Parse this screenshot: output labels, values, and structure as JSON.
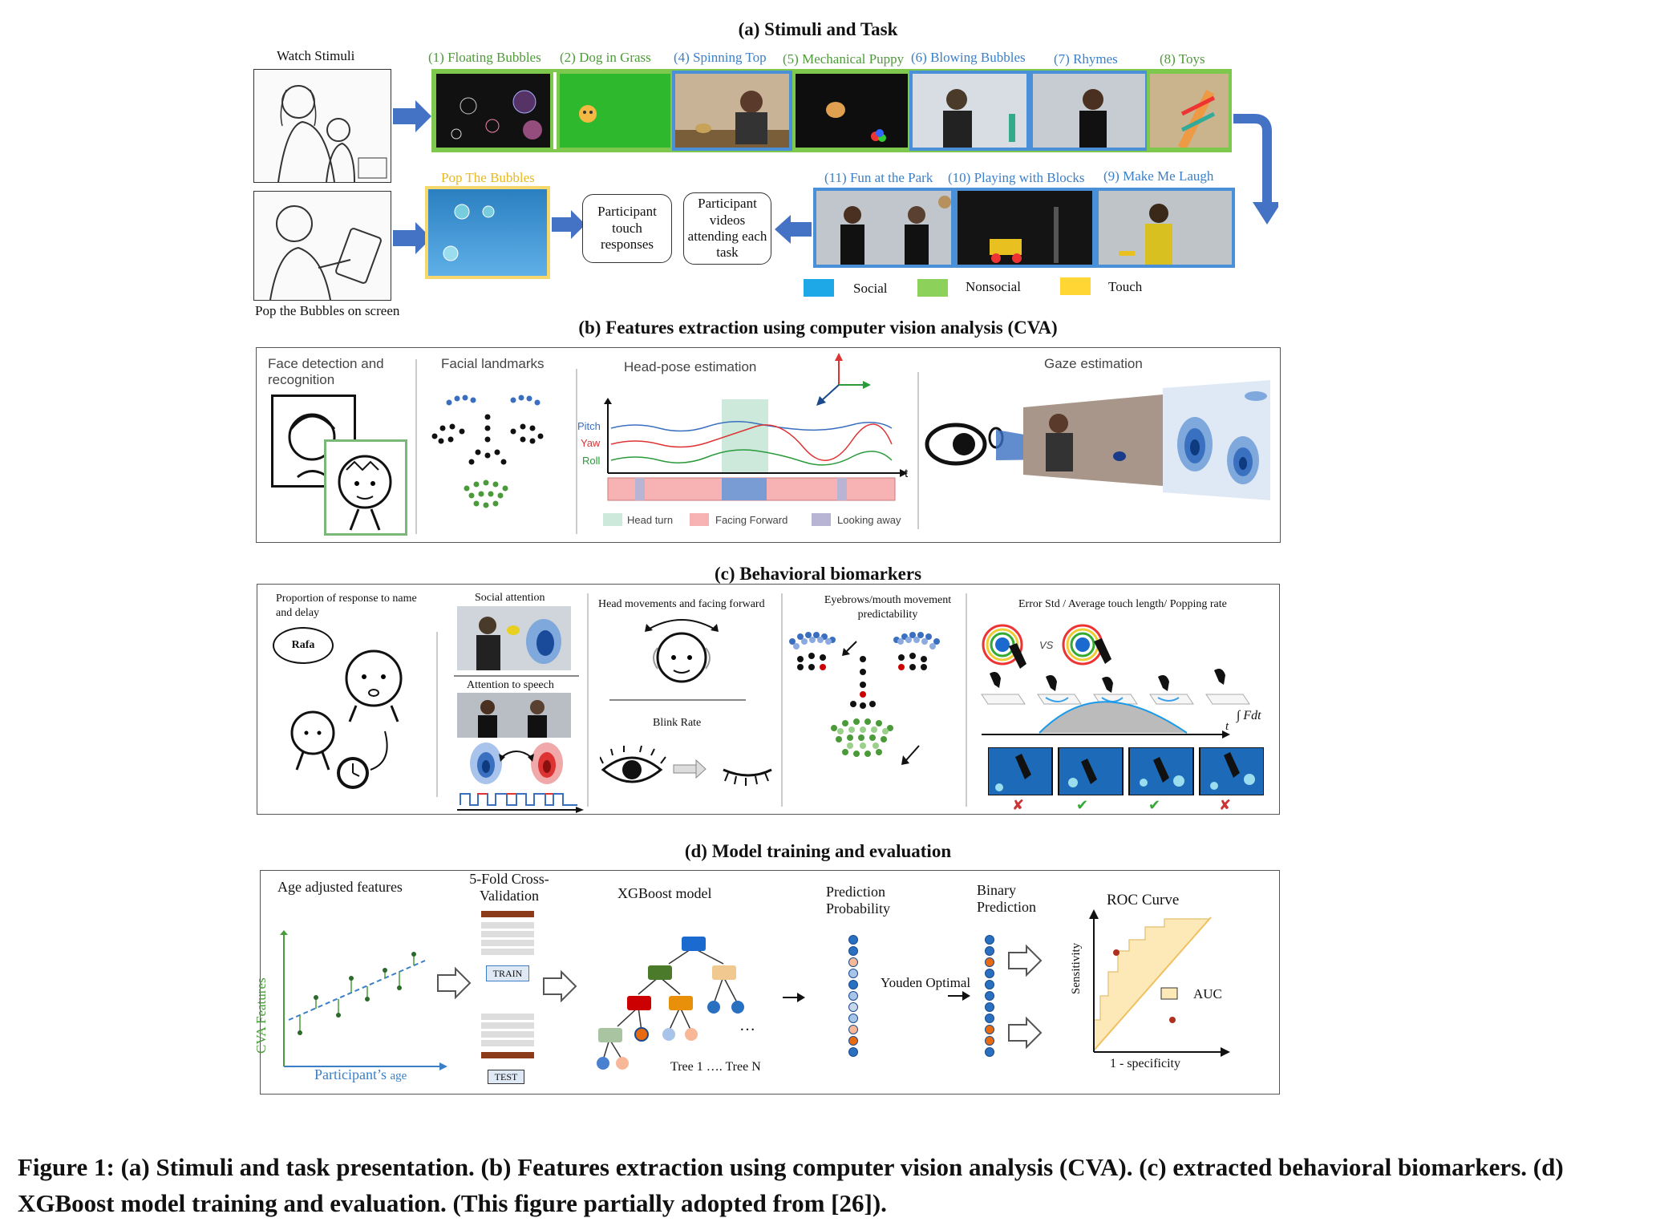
{
  "panel_a": {
    "title": "(a) Stimuli and Task",
    "watch_label": "Watch Stimuli",
    "pop_label": "Pop the Bubbles on screen",
    "stimuli_row1": [
      {
        "label": "(1) Floating Bubbles",
        "color": "#4f9a3a"
      },
      {
        "label": "(2) Dog in Grass",
        "color": "#4f9a3a"
      },
      {
        "label": "(4) Spinning Top",
        "color": "#3a7fc8"
      },
      {
        "label": "(5) Mechanical Puppy",
        "color": "#4f9a3a"
      },
      {
        "label": "(6) Blowing Bubbles",
        "color": "#3a7fc8"
      },
      {
        "label": "(7) Rhymes",
        "color": "#3a7fc8"
      },
      {
        "label": "(8) Toys",
        "color": "#4f9a3a"
      }
    ],
    "stimuli_row2": [
      {
        "label": "(11) Fun at the Park"
      },
      {
        "label": "(10) Playing with Blocks"
      },
      {
        "label": "(9) Make Me Laugh"
      }
    ],
    "pop_bubbles_label": "Pop The Bubbles",
    "touch_box": "Participant touch responses",
    "video_box": "Participant videos attending each task",
    "legend": [
      {
        "label": "Social",
        "color": "#1ea8e8"
      },
      {
        "label": "Nonsocial",
        "color": "#8cd15a"
      },
      {
        "label": "Touch",
        "color": "#ffd633"
      }
    ]
  },
  "panel_b": {
    "title": "(b) Features extraction using computer vision analysis (CVA)",
    "face_detection": "Face detection and recognition",
    "facial_landmarks": "Facial landmarks",
    "head_pose": "Head-pose estimation",
    "gaze": "Gaze estimation",
    "series": [
      "Pitch",
      "Yaw",
      "Roll"
    ],
    "axis_t": "t",
    "legend": [
      {
        "label": "Head turn",
        "color": "#cde9dc"
      },
      {
        "label": "Facing Forward",
        "color": "#f7b3b3"
      },
      {
        "label": "Looking away",
        "color": "#b8b4d4"
      }
    ]
  },
  "panel_c": {
    "title": "(c) Behavioral biomarkers",
    "name_response": "Proportion of response to name and delay",
    "speech_bubble": "Rafa",
    "social_attention": "Social attention",
    "attention_speech": "Attention to speech",
    "head_movements": "Head movements and facing forward",
    "blink_rate": "Blink Rate",
    "eyebrows": "Eyebrows/mouth movement predictability",
    "touch_metrics": "Error Std / Average touch length/ Popping rate",
    "vs": "VS",
    "integral": "∫ Fdt",
    "axis_t": "t",
    "marks": [
      "✘",
      "✔",
      "✔",
      "✘"
    ]
  },
  "panel_d": {
    "title": "(d) Model training and evaluation",
    "age_adjusted": "Age adjusted features",
    "y_axis": "CVA Features",
    "x_axis_a": "Participant’s ",
    "x_axis_b": "age",
    "cv": "5-Fold Cross-Validation",
    "train": "TRAIN",
    "test": "TEST",
    "xgb": "XGBoost model",
    "trees": "Tree 1 …. Tree N",
    "dots": "…",
    "pred_prob": "Prediction Probability",
    "youden": "Youden Optimal",
    "binary": "Binary Prediction",
    "roc": "ROC Curve",
    "sensitivity": "Sensitivity",
    "specificity": "1 - specificity",
    "auc": "AUC"
  },
  "caption": "Figure 1: (a) Stimuli and task presentation. (b) Features extraction using computer vision analysis (CVA). (c) extracted behavioral biomarkers. (d) XGBoost model training and evaluation. (This figure partially adopted from [26])."
}
